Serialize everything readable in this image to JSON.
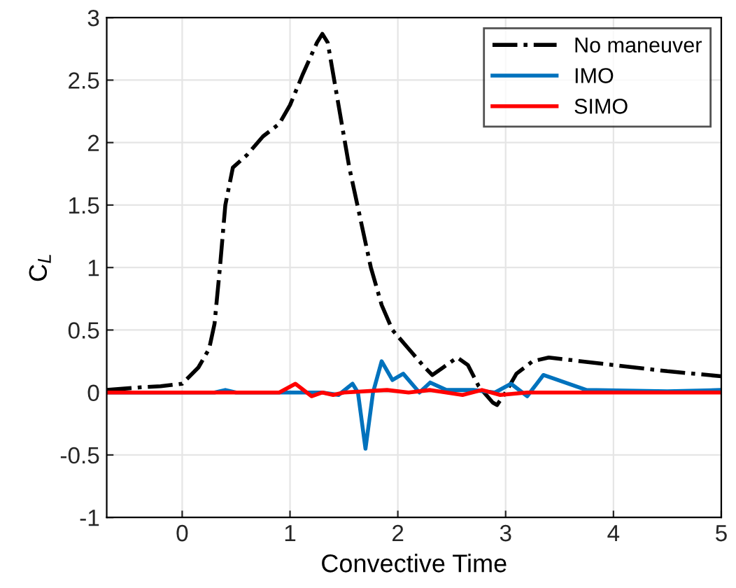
{
  "chart_data": {
    "type": "line",
    "xlabel": "Convective Time",
    "ylabel": "C$_{L}$",
    "xlim": [
      -0.7,
      5
    ],
    "xticks": [
      0,
      1,
      2,
      3,
      4,
      5
    ],
    "ylim": [
      -1,
      3
    ],
    "yticks": [
      -1,
      -0.5,
      0,
      0.5,
      1,
      1.5,
      2,
      2.5,
      3
    ],
    "grid": true,
    "legend": "top right",
    "series": [
      {
        "name": "No maneuver",
        "color": "#000000",
        "line_style": "dashdot",
        "x": [
          -0.7,
          -0.4,
          -0.2,
          0,
          0.15,
          0.25,
          0.3,
          0.35,
          0.4,
          0.47,
          0.6,
          0.75,
          0.9,
          1.0,
          1.12,
          1.25,
          1.3,
          1.35,
          1.45,
          1.55,
          1.65,
          1.75,
          1.85,
          1.95,
          2.1,
          2.25,
          2.32,
          2.42,
          2.55,
          2.65,
          2.75,
          2.88,
          2.92,
          3.0,
          3.1,
          3.25,
          3.4,
          3.6,
          4.0,
          4.5,
          5.0
        ],
        "values": [
          0.02,
          0.04,
          0.05,
          0.07,
          0.2,
          0.35,
          0.55,
          1.0,
          1.5,
          1.8,
          1.9,
          2.05,
          2.15,
          2.3,
          2.55,
          2.8,
          2.87,
          2.8,
          2.3,
          1.8,
          1.4,
          1.0,
          0.7,
          0.5,
          0.35,
          0.2,
          0.14,
          0.2,
          0.28,
          0.22,
          0.05,
          -0.08,
          -0.1,
          0.0,
          0.15,
          0.25,
          0.28,
          0.26,
          0.22,
          0.17,
          0.13
        ]
      },
      {
        "name": "IMO",
        "color": "#0072bd",
        "line_style": "solid",
        "x": [
          -0.7,
          0.3,
          0.4,
          0.5,
          1.3,
          1.45,
          1.58,
          1.63,
          1.7,
          1.77,
          1.85,
          1.95,
          2.05,
          2.2,
          2.3,
          2.45,
          2.7,
          2.9,
          3.05,
          3.2,
          3.35,
          3.55,
          3.75,
          4.5,
          5.0
        ],
        "values": [
          0,
          0,
          0.02,
          0,
          0,
          -0.02,
          0.07,
          0,
          -0.45,
          0,
          0.25,
          0.1,
          0.15,
          0.0,
          0.08,
          0.02,
          0.02,
          0.0,
          0.07,
          -0.03,
          0.14,
          0.08,
          0.02,
          0.01,
          0.02
        ]
      },
      {
        "name": "SIMO",
        "color": "#ff0000",
        "line_style": "solid",
        "x": [
          -0.7,
          0.9,
          1.05,
          1.2,
          1.3,
          1.4,
          1.5,
          1.9,
          2.1,
          2.3,
          2.6,
          2.78,
          2.95,
          3.2,
          5.0
        ],
        "values": [
          0,
          0,
          0.07,
          -0.03,
          0.0,
          -0.02,
          0,
          0.02,
          0.0,
          0.02,
          -0.02,
          0.02,
          -0.02,
          0,
          0
        ]
      }
    ]
  }
}
